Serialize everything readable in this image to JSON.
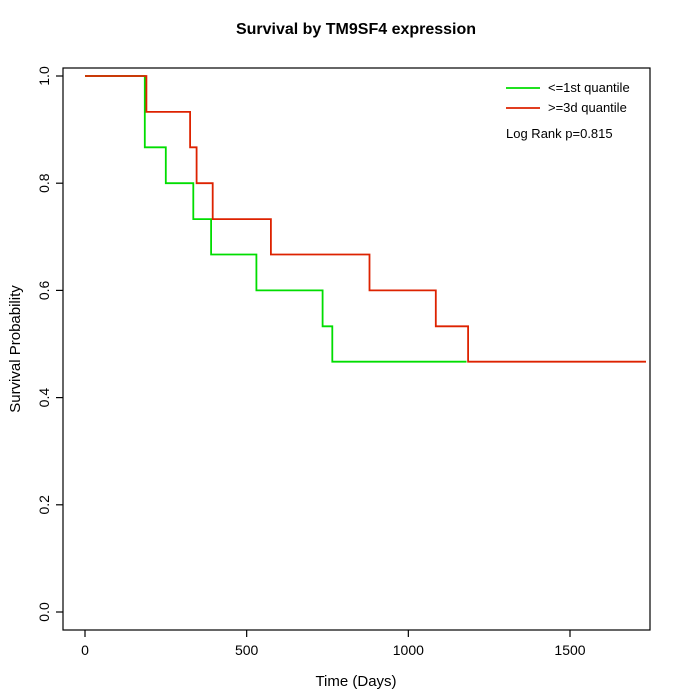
{
  "title": "Survival by TM9SF4 expression",
  "x_axis": {
    "label": "Time (Days)",
    "tick_values": [
      0,
      500,
      1000,
      1500
    ],
    "tick_labels": [
      "0",
      "500",
      "1000",
      "1500"
    ]
  },
  "y_axis": {
    "label": "Survival Probability",
    "tick_values": [
      0,
      0.2,
      0.4,
      0.6,
      0.8,
      1.0
    ],
    "tick_labels": [
      "0.0",
      "0.2",
      "0.4",
      "0.6",
      "0.8",
      "1.0"
    ]
  },
  "legend": {
    "entries": [
      {
        "label": "<=1st quantile",
        "color": "#00DD00"
      },
      {
        "label": ">=3d quantile",
        "color": "#DD2200"
      }
    ],
    "annotation": "Log Rank p=0.815"
  },
  "chart_data": {
    "type": "line",
    "subtype": "kaplan-meier-step",
    "title": "Survival by TM9SF4 expression",
    "xlabel": "Time (Days)",
    "ylabel": "Survival Probability",
    "xlim": [
      -70,
      1748
    ],
    "ylim": [
      0.0,
      1.0
    ],
    "x_ticks": [
      0,
      500,
      1000,
      1500
    ],
    "y_ticks": [
      0.0,
      0.2,
      0.4,
      0.6,
      0.8,
      1.0
    ],
    "grid": false,
    "legend_position": "top-right",
    "annotation": "Log Rank p=0.815",
    "series": [
      {
        "name": "<=1st quantile",
        "color": "#00DD00",
        "step": "post",
        "points": [
          [
            0,
            1.0
          ],
          [
            185,
            0.867
          ],
          [
            250,
            0.8
          ],
          [
            335,
            0.733
          ],
          [
            390,
            0.667
          ],
          [
            530,
            0.6
          ],
          [
            735,
            0.533
          ],
          [
            765,
            0.467
          ],
          [
            1180,
            0.467
          ]
        ]
      },
      {
        "name": ">=3d quantile",
        "color": "#DD2200",
        "step": "post",
        "points": [
          [
            0,
            1.0
          ],
          [
            190,
            0.933
          ],
          [
            325,
            0.867
          ],
          [
            345,
            0.8
          ],
          [
            395,
            0.733
          ],
          [
            575,
            0.667
          ],
          [
            880,
            0.6
          ],
          [
            1085,
            0.533
          ],
          [
            1185,
            0.467
          ],
          [
            1735,
            0.467
          ]
        ]
      }
    ]
  }
}
